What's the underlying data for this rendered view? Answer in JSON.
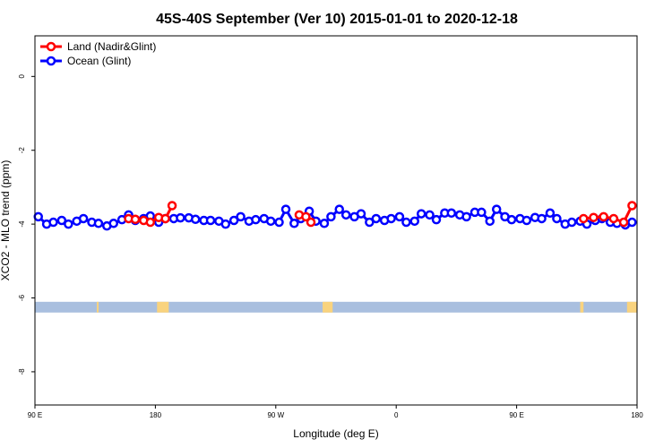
{
  "chart_data": {
    "type": "line",
    "title": "45S-40S September (Ver 10)   2015-01-01 to 2020-12-18",
    "xlabel": "Longitude (deg E)",
    "ylabel": "XCO2 - MLO trend (ppm)",
    "xlim": [
      90,
      450
    ],
    "ylim": [
      -8.9,
      1.1
    ],
    "x_ticks": [
      {
        "value": 90,
        "label": "90 E"
      },
      {
        "value": 180,
        "label": "180"
      },
      {
        "value": 270,
        "label": "90 W"
      },
      {
        "value": 360,
        "label": "0"
      },
      {
        "value": 450,
        "label": "90 E"
      },
      {
        "value": 540,
        "label": "180"
      }
    ],
    "y_ticks": [
      {
        "value": 0,
        "label": "0"
      },
      {
        "value": -2,
        "label": "-2"
      },
      {
        "value": -4,
        "label": "-4"
      },
      {
        "value": -6,
        "label": "-6"
      },
      {
        "value": -8,
        "label": "-8"
      }
    ],
    "legend": {
      "position": "top-left"
    },
    "series": [
      {
        "name": "Land (Nadir&Glint)",
        "color": "#ff0000",
        "segments": [
          [
            [
              146,
              -3.85
            ],
            [
              150,
              -3.87
            ],
            [
              155,
              -3.9
            ],
            [
              159,
              -3.95
            ],
            [
              164,
              -3.82
            ],
            [
              168,
              -3.85
            ],
            [
              172,
              -3.5
            ]
          ],
          [
            [
              248,
              -3.75
            ],
            [
              252,
              -3.8
            ],
            [
              255,
              -3.95
            ]
          ],
          [
            [
              418,
              -3.85
            ],
            [
              424,
              -3.82
            ],
            [
              430,
              -3.8
            ],
            [
              436,
              -3.85
            ],
            [
              442,
              -3.95
            ],
            [
              447,
              -3.5
            ]
          ]
        ]
      },
      {
        "name": "Ocean (Glint)",
        "color": "#0000ff",
        "x": [
          92,
          97,
          101,
          106,
          110,
          115,
          119,
          124,
          128,
          133,
          137,
          142,
          146,
          150,
          155,
          159,
          164,
          168,
          173,
          177,
          182,
          186,
          191,
          195,
          200,
          204,
          209,
          213,
          218,
          222,
          227,
          231,
          236,
          240,
          245,
          249,
          254,
          258,
          263,
          267,
          272,
          276,
          281,
          285,
          290,
          294,
          299,
          303,
          308,
          312,
          317,
          321,
          326,
          330,
          335,
          339,
          344,
          348,
          353,
          357,
          362,
          366,
          371,
          375,
          380,
          384,
          389,
          393,
          398,
          402,
          407,
          411,
          416,
          420,
          425,
          429,
          434,
          438,
          443,
          447
        ],
        "values": [
          -3.8,
          -4.0,
          -3.95,
          -3.9,
          -4.0,
          -3.92,
          -3.85,
          -3.95,
          -3.98,
          -4.05,
          -3.98,
          -3.88,
          -3.75,
          -3.9,
          -3.85,
          -3.78,
          -3.95,
          -3.85,
          -3.85,
          -3.83,
          -3.83,
          -3.87,
          -3.9,
          -3.9,
          -3.92,
          -4.0,
          -3.9,
          -3.8,
          -3.92,
          -3.88,
          -3.85,
          -3.92,
          -3.95,
          -3.6,
          -3.98,
          -3.85,
          -3.65,
          -3.92,
          -3.98,
          -3.8,
          -3.6,
          -3.75,
          -3.8,
          -3.72,
          -3.95,
          -3.85,
          -3.9,
          -3.85,
          -3.8,
          -3.95,
          -3.92,
          -3.72,
          -3.75,
          -3.88,
          -3.7,
          -3.7,
          -3.75,
          -3.8,
          -3.68,
          -3.68,
          -3.92,
          -3.6,
          -3.8,
          -3.88,
          -3.85,
          -3.9,
          -3.82,
          -3.85,
          -3.7,
          -3.85,
          -4.0,
          -3.95,
          -3.92,
          -4.0,
          -3.9,
          -3.85,
          -3.95,
          -3.98,
          -4.02,
          -3.95
        ]
      }
    ],
    "land_mask": {
      "y": -6.25,
      "ocean_color": "#a9bfdf",
      "land_color": "#f9d37e",
      "land_ranges": [
        [
          127,
          128
        ],
        [
          163,
          170
        ],
        [
          262,
          268
        ],
        [
          416,
          418
        ],
        [
          444,
          450
        ]
      ]
    }
  }
}
